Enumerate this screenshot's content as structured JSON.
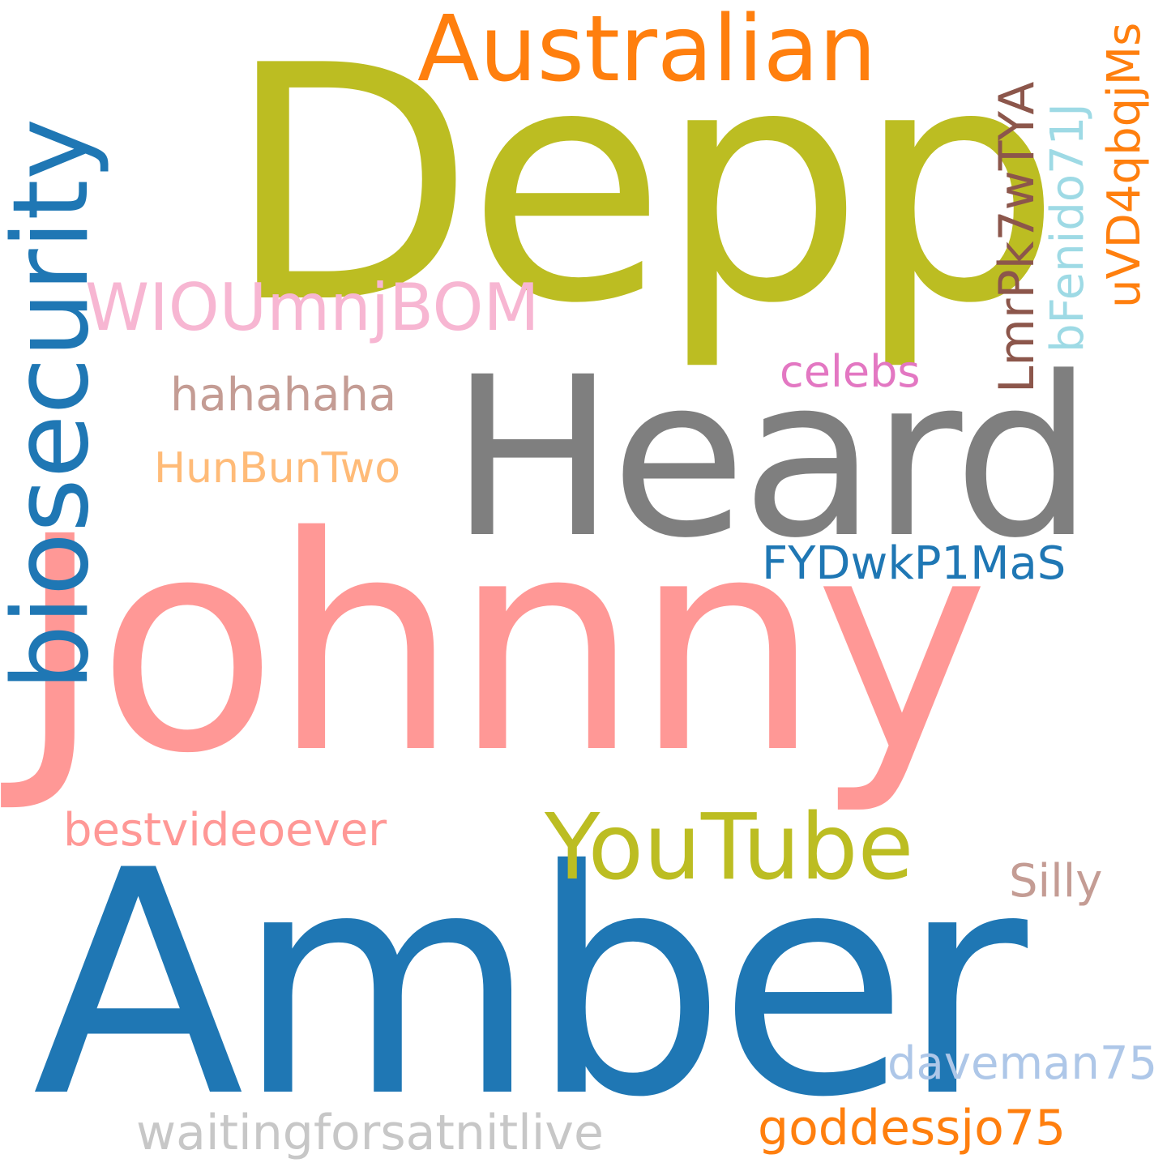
{
  "words": {
    "depp": {
      "text": "Depp",
      "color": "#bcbd22"
    },
    "australian": {
      "text": "Australian",
      "color": "#ff7f0e"
    },
    "heard": {
      "text": "Heard",
      "color": "#7f7f7f"
    },
    "johnny": {
      "text": "Johnny",
      "color": "#ff9896"
    },
    "amber": {
      "text": "Amber",
      "color": "#1f77b4"
    },
    "youtube": {
      "text": "YouTube",
      "color": "#bcbd22"
    },
    "biosecurity": {
      "text": "biosecurity",
      "color": "#1f77b4"
    },
    "wioumnjbom": {
      "text": "WIOUmnjBOM",
      "color": "#f7b6d2"
    },
    "hahahaha": {
      "text": "hahahaha",
      "color": "#c49c94"
    },
    "hunbuntwo": {
      "text": "HunBunTwo",
      "color": "#ffbb78"
    },
    "celebs": {
      "text": "celebs",
      "color": "#e377c2"
    },
    "lmr": {
      "text": "LmrPk7wTYA",
      "color": "#8c564b"
    },
    "bfenido": {
      "text": "bFenido71J",
      "color": "#9edae5"
    },
    "uvd4": {
      "text": "uVD4qbqjMs",
      "color": "#ff7f0e"
    },
    "fydwk": {
      "text": "FYDwkP1MaS",
      "color": "#1f77b4"
    },
    "bestvideo": {
      "text": "bestvideoever",
      "color": "#ff9896"
    },
    "silly": {
      "text": "Silly",
      "color": "#c49c94"
    },
    "daveman": {
      "text": "daveman75",
      "color": "#aec7e8"
    },
    "waiting": {
      "text": "waitingforsatnitlive",
      "color": "#c7c7c7"
    },
    "goddess": {
      "text": "goddessjo75",
      "color": "#ff7f0e"
    }
  },
  "background": "#ffffff"
}
